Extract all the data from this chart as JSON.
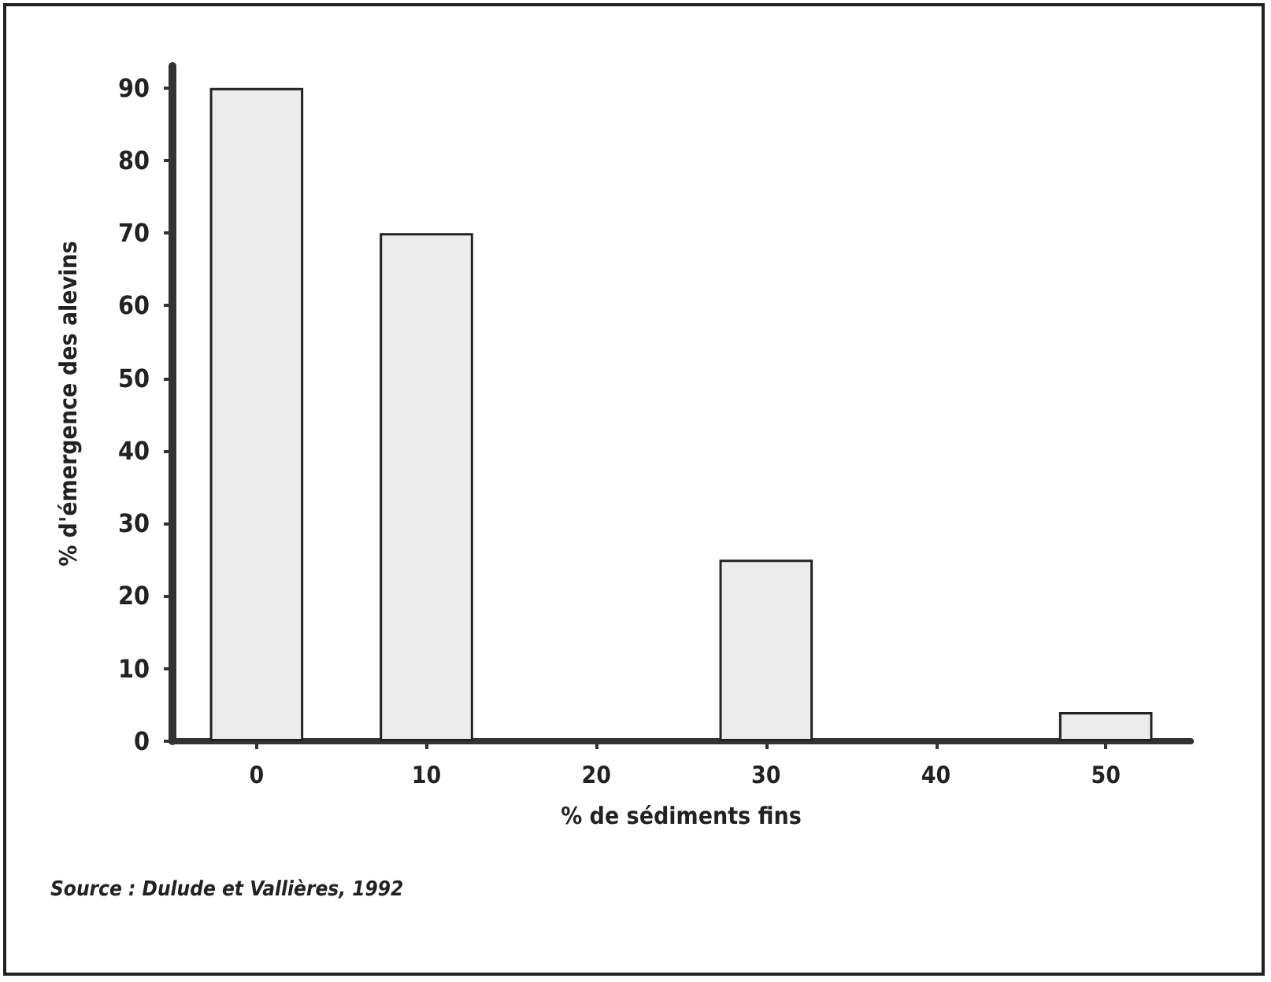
{
  "chart_data": {
    "type": "bar",
    "categories": [
      "0",
      "10",
      "20",
      "30",
      "40",
      "50"
    ],
    "values": [
      90,
      70,
      0,
      25,
      0,
      4
    ],
    "color": "#ececec",
    "xlabel": "% de sédiments fins",
    "ylabel": "% d'émergence des alevins",
    "ylim": [
      0,
      93
    ],
    "yticks": [
      0,
      10,
      20,
      30,
      40,
      50,
      60,
      70,
      80,
      90
    ],
    "grid": false,
    "annotations": [
      "Source : Dulude et Vallières, 1992"
    ]
  }
}
